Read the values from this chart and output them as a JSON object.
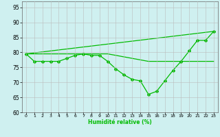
{
  "xlabel": "Humidité relative (%)",
  "background_color": "#cff0f0",
  "grid_color": "#bbbbbb",
  "line_color": "#00bb00",
  "xlim": [
    -0.5,
    23.5
  ],
  "ylim": [
    60,
    97
  ],
  "yticks": [
    60,
    65,
    70,
    75,
    80,
    85,
    90,
    95
  ],
  "xticks": [
    0,
    1,
    2,
    3,
    4,
    5,
    6,
    7,
    8,
    9,
    10,
    11,
    12,
    13,
    14,
    15,
    16,
    17,
    18,
    19,
    20,
    21,
    22,
    23
  ],
  "line1_x": [
    0,
    1,
    2,
    3,
    4,
    5,
    6,
    7,
    8,
    9,
    10,
    11,
    12,
    13,
    14,
    15,
    16,
    17,
    18,
    19,
    20,
    21,
    22,
    23
  ],
  "line1_y": [
    79.5,
    77,
    77,
    77,
    77,
    78,
    79,
    79.5,
    79,
    79,
    77,
    74.5,
    72.5,
    71,
    70.5,
    66,
    67,
    70.5,
    74,
    77,
    80.5,
    84,
    84,
    87
  ],
  "line2_x": [
    0,
    10,
    15,
    23
  ],
  "line2_y": [
    79.5,
    79.5,
    77,
    77
  ],
  "line3_x": [
    0,
    23
  ],
  "line3_y": [
    79.5,
    87
  ]
}
